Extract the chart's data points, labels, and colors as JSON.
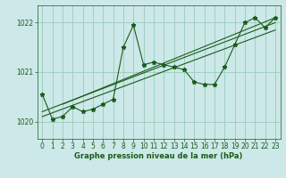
{
  "title": "Graphe pression niveau de la mer (hPa)",
  "bg_color": "#cce8e8",
  "grid_color": "#99ccbb",
  "line_color": "#1a5c1a",
  "ylim": [
    1019.65,
    1022.35
  ],
  "xlim": [
    -0.5,
    23.5
  ],
  "yticks": [
    1020,
    1021,
    1022
  ],
  "xticks": [
    0,
    1,
    2,
    3,
    4,
    5,
    6,
    7,
    8,
    9,
    10,
    11,
    12,
    13,
    14,
    15,
    16,
    17,
    18,
    19,
    20,
    21,
    22,
    23
  ],
  "pressure_data": [
    [
      0,
      1020.55
    ],
    [
      1,
      1020.05
    ],
    [
      2,
      1020.1
    ],
    [
      3,
      1020.3
    ],
    [
      4,
      1020.2
    ],
    [
      5,
      1020.25
    ],
    [
      6,
      1020.35
    ],
    [
      7,
      1020.45
    ],
    [
      8,
      1021.5
    ],
    [
      9,
      1021.95
    ],
    [
      10,
      1021.15
    ],
    [
      11,
      1021.2
    ],
    [
      12,
      1021.15
    ],
    [
      13,
      1021.1
    ],
    [
      14,
      1021.05
    ],
    [
      15,
      1020.8
    ],
    [
      16,
      1020.75
    ],
    [
      17,
      1020.75
    ],
    [
      18,
      1021.1
    ],
    [
      19,
      1021.55
    ],
    [
      20,
      1022.0
    ],
    [
      21,
      1022.1
    ],
    [
      22,
      1021.9
    ],
    [
      23,
      1022.1
    ]
  ],
  "trend_lines": [
    [
      [
        0,
        1020.1
      ],
      [
        23,
        1021.85
      ]
    ],
    [
      [
        0,
        1020.2
      ],
      [
        23,
        1022.0
      ]
    ],
    [
      [
        2,
        1020.35
      ],
      [
        23,
        1022.1
      ]
    ]
  ]
}
